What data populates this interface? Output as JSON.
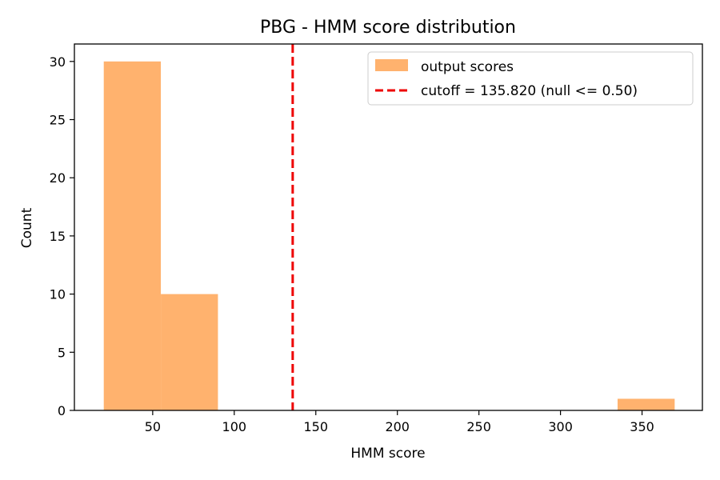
{
  "chart_data": {
    "type": "bar",
    "title": "PBG - HMM score distribution",
    "xlabel": "HMM score",
    "ylabel": "Count",
    "xlim": [
      2,
      387
    ],
    "ylim": [
      0,
      31.5
    ],
    "xticks": [
      50,
      100,
      150,
      200,
      250,
      300,
      350
    ],
    "yticks": [
      0,
      5,
      10,
      15,
      20,
      25,
      30
    ],
    "bins": [
      {
        "x0": 20,
        "x1": 55,
        "count": 30
      },
      {
        "x0": 55,
        "x1": 90,
        "count": 10
      },
      {
        "x0": 335,
        "x1": 370,
        "count": 1
      }
    ],
    "series": [
      {
        "name": "output scores",
        "color": "#ffb26e"
      }
    ],
    "cutoff": {
      "value": 135.82,
      "label": "cutoff = 135.820 (null <= 0.50)",
      "color": "#ee0000"
    },
    "legend_position": "top-right",
    "grid": false
  }
}
